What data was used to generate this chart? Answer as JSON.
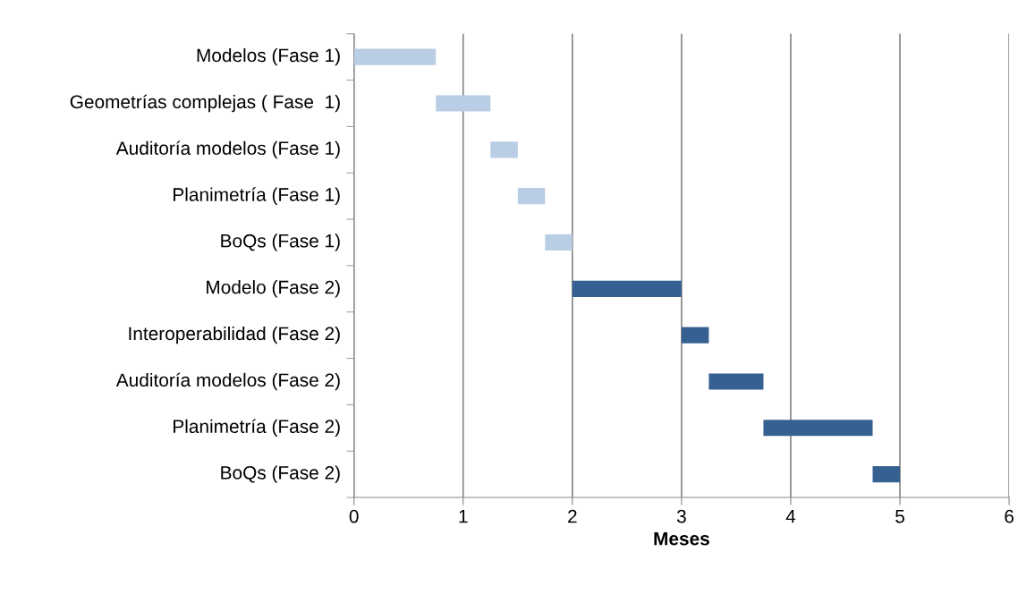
{
  "chart_data": {
    "type": "bar",
    "orientation": "horizontal",
    "xlabel": "Meses",
    "categories": [
      "Modelos (Fase 1)",
      "Geometrías complejas ( Fase  1)",
      "Auditoría modelos (Fase 1)",
      "Planimetría (Fase 1)",
      "BoQs (Fase 1)",
      "Modelo (Fase 2)",
      "Interoperabilidad (Fase 2)",
      "Auditoría modelos (Fase 2)",
      "Planimetría (Fase 2)",
      "BoQs (Fase 2)"
    ],
    "base": [
      0,
      0.75,
      1.25,
      1.5,
      1.75,
      2,
      3,
      3.25,
      3.75,
      4.75
    ],
    "values": [
      0.75,
      0.5,
      0.25,
      0.25,
      0.25,
      1,
      0.25,
      0.5,
      1,
      0.25
    ],
    "colors": [
      "#b9cde5",
      "#b9cde5",
      "#b9cde5",
      "#b9cde5",
      "#b9cde5",
      "#376092",
      "#376092",
      "#376092",
      "#376092",
      "#376092"
    ],
    "xlim": [
      0,
      6
    ],
    "xticks": [
      0,
      1,
      2,
      3,
      4,
      5,
      6
    ],
    "grid": "x"
  }
}
